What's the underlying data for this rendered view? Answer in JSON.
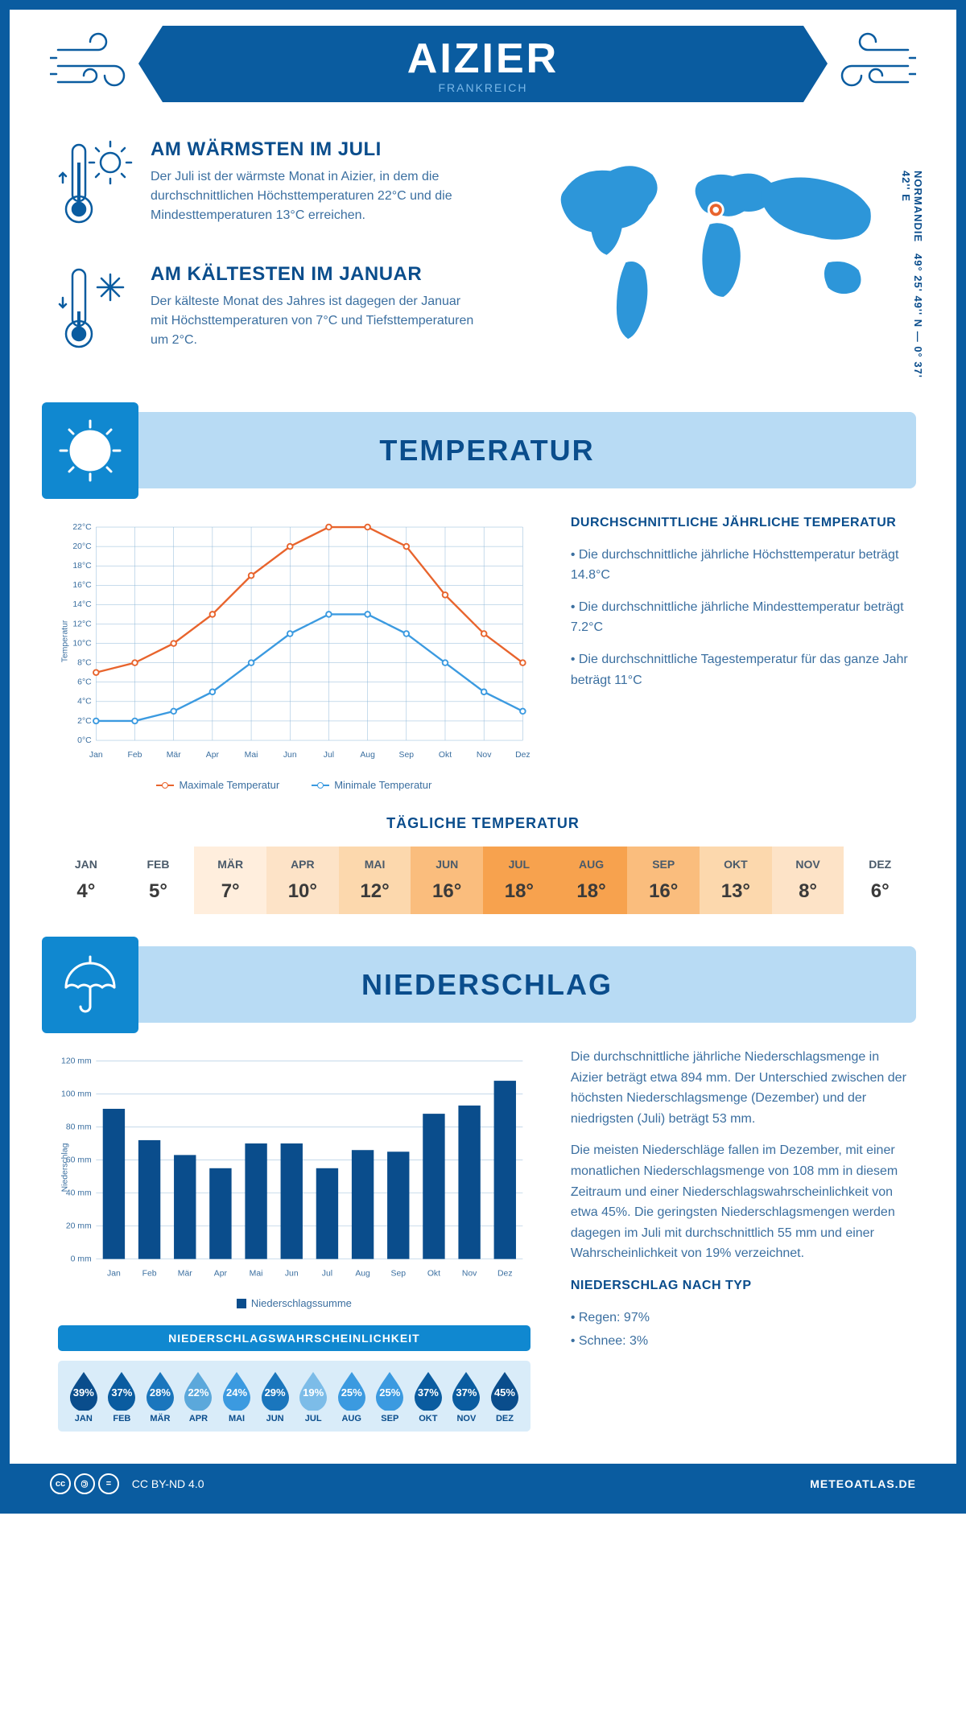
{
  "header": {
    "city": "AIZIER",
    "country": "FRANKREICH"
  },
  "coords": {
    "lat": "49° 25' 49'' N — 0° 37' 42'' E",
    "region": "NORMANDIE"
  },
  "warmest": {
    "title": "AM WÄRMSTEN IM JULI",
    "body": "Der Juli ist der wärmste Monat in Aizier, in dem die durchschnittlichen Höchsttemperaturen 22°C und die Mindesttemperaturen 13°C erreichen."
  },
  "coldest": {
    "title": "AM KÄLTESTEN IM JANUAR",
    "body": "Der kälteste Monat des Jahres ist dagegen der Januar mit Höchsttemperaturen von 7°C und Tiefsttemperaturen um 2°C."
  },
  "sections": {
    "temp": "TEMPERATUR",
    "precip": "NIEDERSCHLAG"
  },
  "temp_chart": {
    "months": [
      "Jan",
      "Feb",
      "Mär",
      "Apr",
      "Mai",
      "Jun",
      "Jul",
      "Aug",
      "Sep",
      "Okt",
      "Nov",
      "Dez"
    ],
    "max_series": [
      7,
      8,
      10,
      13,
      17,
      20,
      22,
      22,
      20,
      15,
      11,
      8
    ],
    "min_series": [
      2,
      2,
      3,
      5,
      8,
      11,
      13,
      13,
      11,
      8,
      5,
      3
    ],
    "y_min": 0,
    "y_max": 22,
    "y_step": 2,
    "max_color": "#e8642d",
    "min_color": "#3b9ae0",
    "grid_color": "#8ab4d6",
    "y_label": "Temperatur",
    "legend_max": "Maximale Temperatur",
    "legend_min": "Minimale Temperatur"
  },
  "temp_text": {
    "title": "DURCHSCHNITTLICHE JÄHRLICHE TEMPERATUR",
    "b1": "• Die durchschnittliche jährliche Höchsttemperatur beträgt 14.8°C",
    "b2": "• Die durchschnittliche jährliche Mindesttemperatur beträgt 7.2°C",
    "b3": "• Die durchschnittliche Tagestemperatur für das ganze Jahr beträgt 11°C"
  },
  "daily_temp": {
    "title": "TÄGLICHE TEMPERATUR",
    "months": [
      "JAN",
      "FEB",
      "MÄR",
      "APR",
      "MAI",
      "JUN",
      "JUL",
      "AUG",
      "SEP",
      "OKT",
      "NOV",
      "DEZ"
    ],
    "values": [
      "4°",
      "5°",
      "7°",
      "10°",
      "12°",
      "16°",
      "18°",
      "18°",
      "16°",
      "13°",
      "8°",
      "6°"
    ],
    "colors": [
      "#ffffff",
      "#ffffff",
      "#ffeedd",
      "#fde3c7",
      "#fcd8ad",
      "#fabd7d",
      "#f7a24e",
      "#f7a24e",
      "#fabd7d",
      "#fcd8ad",
      "#fde3c7",
      "#ffffff"
    ]
  },
  "precip_chart": {
    "months": [
      "Jan",
      "Feb",
      "Mär",
      "Apr",
      "Mai",
      "Jun",
      "Jul",
      "Aug",
      "Sep",
      "Okt",
      "Nov",
      "Dez"
    ],
    "values": [
      91,
      72,
      63,
      55,
      70,
      70,
      55,
      66,
      65,
      88,
      93,
      108
    ],
    "y_min": 0,
    "y_max": 120,
    "y_step": 20,
    "bar_color": "#0a4d8c",
    "grid_color": "#c5d9ea",
    "y_label": "Niederschlag",
    "legend": "Niederschlagssumme"
  },
  "precip_text": {
    "p1": "Die durchschnittliche jährliche Niederschlagsmenge in Aizier beträgt etwa 894 mm. Der Unterschied zwischen der höchsten Niederschlagsmenge (Dezember) und der niedrigsten (Juli) beträgt 53 mm.",
    "p2": "Die meisten Niederschläge fallen im Dezember, mit einer monatlichen Niederschlagsmenge von 108 mm in diesem Zeitraum und einer Niederschlagswahrscheinlichkeit von etwa 45%. Die geringsten Niederschlagsmengen werden dagegen im Juli mit durchschnittlich 55 mm und einer Wahrscheinlichkeit von 19% verzeichnet.",
    "type_title": "NIEDERSCHLAG NACH TYP",
    "type_b1": "• Regen: 97%",
    "type_b2": "• Schnee: 3%"
  },
  "probability": {
    "title": "NIEDERSCHLAGSWAHRSCHEINLICHKEIT",
    "months": [
      "JAN",
      "FEB",
      "MÄR",
      "APR",
      "MAI",
      "JUN",
      "JUL",
      "AUG",
      "SEP",
      "OKT",
      "NOV",
      "DEZ"
    ],
    "values": [
      "39%",
      "37%",
      "28%",
      "22%",
      "24%",
      "29%",
      "19%",
      "25%",
      "25%",
      "37%",
      "37%",
      "45%"
    ],
    "colors": [
      "#0a4d8c",
      "#0a5ca0",
      "#1a76bd",
      "#5ba8db",
      "#3b9ae0",
      "#1a76bd",
      "#7cbce8",
      "#3b9ae0",
      "#3b9ae0",
      "#0a5ca0",
      "#0a5ca0",
      "#0a4d8c"
    ]
  },
  "footer": {
    "license": "CC BY-ND 4.0",
    "site": "METEOATLAS.DE"
  }
}
